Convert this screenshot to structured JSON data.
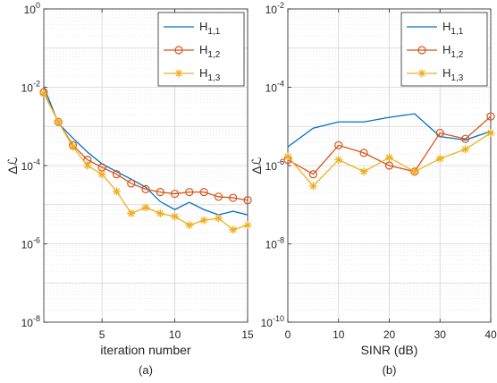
{
  "chart_data": [
    {
      "type": "line",
      "caption": "(a)",
      "xlabel": "iteration number",
      "ylabel": "Δℒ",
      "xlim": [
        1,
        15
      ],
      "ylim_exp": [
        -8,
        0
      ],
      "yscale": "log",
      "xticks": [
        5,
        10,
        15
      ],
      "yticks_exp": [
        -8,
        -6,
        -4,
        -2,
        0
      ],
      "grid": true,
      "legend_position": "top-right",
      "x": [
        1,
        2,
        3,
        4,
        5,
        6,
        7,
        8,
        9,
        10,
        11,
        12,
        13,
        14,
        15
      ],
      "series": [
        {
          "name": "H",
          "sub": "1,1",
          "color": "#0072BD",
          "marker": "none",
          "values": [
            0.0105,
            0.0012,
            0.0005,
            0.00022,
            0.00011,
            7e-05,
            4.5e-05,
            2.8e-05,
            1.2e-05,
            7.5e-06,
            1.15e-05,
            7.5e-06,
            5.5e-06,
            6.8e-06,
            5.5e-06
          ]
        },
        {
          "name": "H",
          "sub": "1,2",
          "color": "#D95319",
          "marker": "circle",
          "values": [
            0.0075,
            0.0013,
            0.00033,
            0.00014,
            9e-05,
            6e-05,
            3.5e-05,
            2.5e-05,
            2.1e-05,
            1.9e-05,
            2.1e-05,
            2.1e-05,
            1.6e-05,
            1.5e-05,
            1.3e-05
          ]
        },
        {
          "name": "H",
          "sub": "1,3",
          "color": "#EDB120",
          "marker": "star",
          "values": [
            0.007,
            0.0013,
            0.0003,
            0.0001,
            6e-05,
            2.2e-05,
            6e-06,
            8.5e-06,
            6e-06,
            5e-06,
            3e-06,
            4e-06,
            4.5e-06,
            2.3e-06,
            3e-06
          ]
        }
      ]
    },
    {
      "type": "line",
      "caption": "(b)",
      "xlabel": "SINR  (dB)",
      "ylabel": "Δℒ",
      "xlim": [
        0,
        40
      ],
      "ylim_exp": [
        -10,
        -2
      ],
      "yscale": "log",
      "xticks": [
        0,
        10,
        20,
        30,
        40
      ],
      "yticks_exp": [
        -10,
        -8,
        -6,
        -4,
        -2
      ],
      "grid": true,
      "legend_position": "top-right",
      "x": [
        0,
        5,
        10,
        15,
        20,
        25,
        30,
        35,
        40
      ],
      "series": [
        {
          "name": "H",
          "sub": "1,1",
          "color": "#0072BD",
          "marker": "none",
          "values": [
            3e-06,
            9e-06,
            1.3e-05,
            1.3e-05,
            1.7e-05,
            2.1e-05,
            5.5e-06,
            4.5e-06,
            7.5e-06
          ]
        },
        {
          "name": "H",
          "sub": "1,2",
          "color": "#D95319",
          "marker": "circle",
          "values": [
            1.4e-06,
            6e-07,
            3.3e-06,
            2.1e-06,
            1e-06,
            7e-07,
            6.8e-06,
            4.8e-06,
            1.8e-05
          ]
        },
        {
          "name": "H",
          "sub": "1,3",
          "color": "#EDB120",
          "marker": "star",
          "values": [
            1.7e-06,
            3e-07,
            1.4e-06,
            7e-07,
            1.6e-06,
            7e-07,
            1.5e-06,
            2.6e-06,
            6.8e-06
          ]
        }
      ]
    }
  ]
}
